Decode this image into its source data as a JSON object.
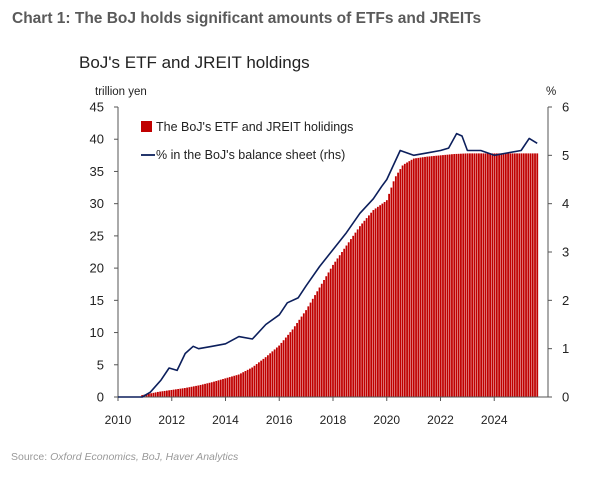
{
  "page": {
    "heading": "Chart 1: The BoJ holds significant amounts of ETFs and JREITs",
    "source_prefix": "Source: ",
    "source_italic": "Oxford Economics, BoJ, Haver Analytics"
  },
  "chart_data": {
    "type": "bar",
    "title": "BoJ's ETF and JREIT holdings",
    "y_left_label": "trillion yen",
    "y_right_label": "%",
    "xlim": [
      2010,
      2026
    ],
    "ylim_left": [
      0,
      45
    ],
    "ylim_right": [
      0,
      6
    ],
    "x_ticks": [
      "2010",
      "2012",
      "2014",
      "2016",
      "2018",
      "2020",
      "2022",
      "2024"
    ],
    "y_left_ticks": [
      "0",
      "5",
      "10",
      "15",
      "20",
      "25",
      "30",
      "35",
      "40",
      "45"
    ],
    "y_right_ticks": [
      "0",
      "1",
      "2",
      "3",
      "4",
      "5",
      "6"
    ],
    "legend_position": "top-left",
    "colors": {
      "bars": "#c00000",
      "line": "#0c1f5c",
      "axis": "#555555"
    },
    "series": [
      {
        "name": "The BoJ's ETF and JREIT holidings",
        "type": "bar",
        "axis": "left",
        "x": [
          2010.9,
          2011.5,
          2012.0,
          2012.5,
          2013.0,
          2013.5,
          2014.0,
          2014.5,
          2015.0,
          2015.5,
          2016.0,
          2016.5,
          2017.0,
          2017.5,
          2018.0,
          2018.5,
          2019.0,
          2019.5,
          2020.0,
          2020.3,
          2020.6,
          2021.0,
          2021.5,
          2022.0,
          2022.5,
          2023.0,
          2023.5,
          2024.0,
          2024.5,
          2025.0,
          2025.6
        ],
        "values": [
          0.3,
          0.8,
          1.1,
          1.4,
          1.8,
          2.3,
          2.9,
          3.5,
          4.6,
          6.2,
          8.0,
          10.5,
          13.5,
          17.0,
          20.5,
          23.5,
          26.5,
          29.0,
          30.5,
          34.0,
          36.0,
          37.0,
          37.3,
          37.5,
          37.7,
          37.8,
          37.8,
          37.8,
          37.8,
          37.8,
          37.8
        ]
      },
      {
        "name": "% in the BoJ's balance sheet (rhs)",
        "type": "line",
        "axis": "right",
        "x": [
          2010.0,
          2010.9,
          2011.2,
          2011.6,
          2011.9,
          2012.2,
          2012.5,
          2012.8,
          2013.0,
          2013.5,
          2014.0,
          2014.5,
          2015.0,
          2015.5,
          2016.0,
          2016.3,
          2016.7,
          2017.0,
          2017.5,
          2018.0,
          2018.5,
          2019.0,
          2019.5,
          2019.8,
          2020.0,
          2020.5,
          2021.0,
          2021.5,
          2022.0,
          2022.3,
          2022.6,
          2022.8,
          2023.0,
          2023.5,
          2024.0,
          2024.5,
          2025.0,
          2025.3,
          2025.6
        ],
        "values": [
          0.0,
          0.0,
          0.1,
          0.35,
          0.6,
          0.55,
          0.9,
          1.05,
          1.0,
          1.05,
          1.1,
          1.25,
          1.2,
          1.5,
          1.7,
          1.95,
          2.05,
          2.3,
          2.7,
          3.05,
          3.4,
          3.8,
          4.1,
          4.35,
          4.5,
          5.1,
          5.0,
          5.05,
          5.1,
          5.15,
          5.45,
          5.4,
          5.1,
          5.1,
          5.0,
          5.05,
          5.1,
          5.35,
          5.25
        ]
      }
    ]
  }
}
